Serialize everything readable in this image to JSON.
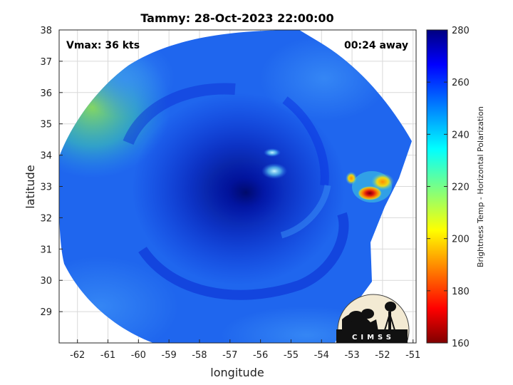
{
  "chart_data": {
    "type": "heatmap",
    "title": "Tammy: 28-Oct-2023 22:00:00",
    "xlabel": "longitude",
    "ylabel": "latitude",
    "xlim": [
      -62.6,
      -50.9
    ],
    "ylim": [
      28.0,
      38.0
    ],
    "xticks": [
      -62,
      -61,
      -60,
      -59,
      -58,
      -57,
      -56,
      -55,
      -54,
      -53,
      -52,
      -51
    ],
    "yticks": [
      29,
      30,
      31,
      32,
      33,
      34,
      35,
      36,
      37,
      38
    ],
    "grid": true,
    "annotations": {
      "vmax": "Vmax: 36 kts",
      "time_away": "00:24 away"
    },
    "storm_center": {
      "lon": -56.6,
      "lat": 33.0
    },
    "cold_spots": [
      {
        "lon": -52.4,
        "lat": 32.75,
        "value": 172
      },
      {
        "lon": -52.0,
        "lat": 33.1,
        "value": 215
      },
      {
        "lon": -52.95,
        "lat": 33.25,
        "value": 200
      }
    ],
    "colorbar": {
      "label": "Brightness Temp - Horizontal Polarization",
      "min": 160,
      "max": 280,
      "ticks": [
        160,
        180,
        200,
        220,
        240,
        260,
        280
      ],
      "colormap": "jet"
    }
  },
  "logo": {
    "text": "CIMSS"
  }
}
